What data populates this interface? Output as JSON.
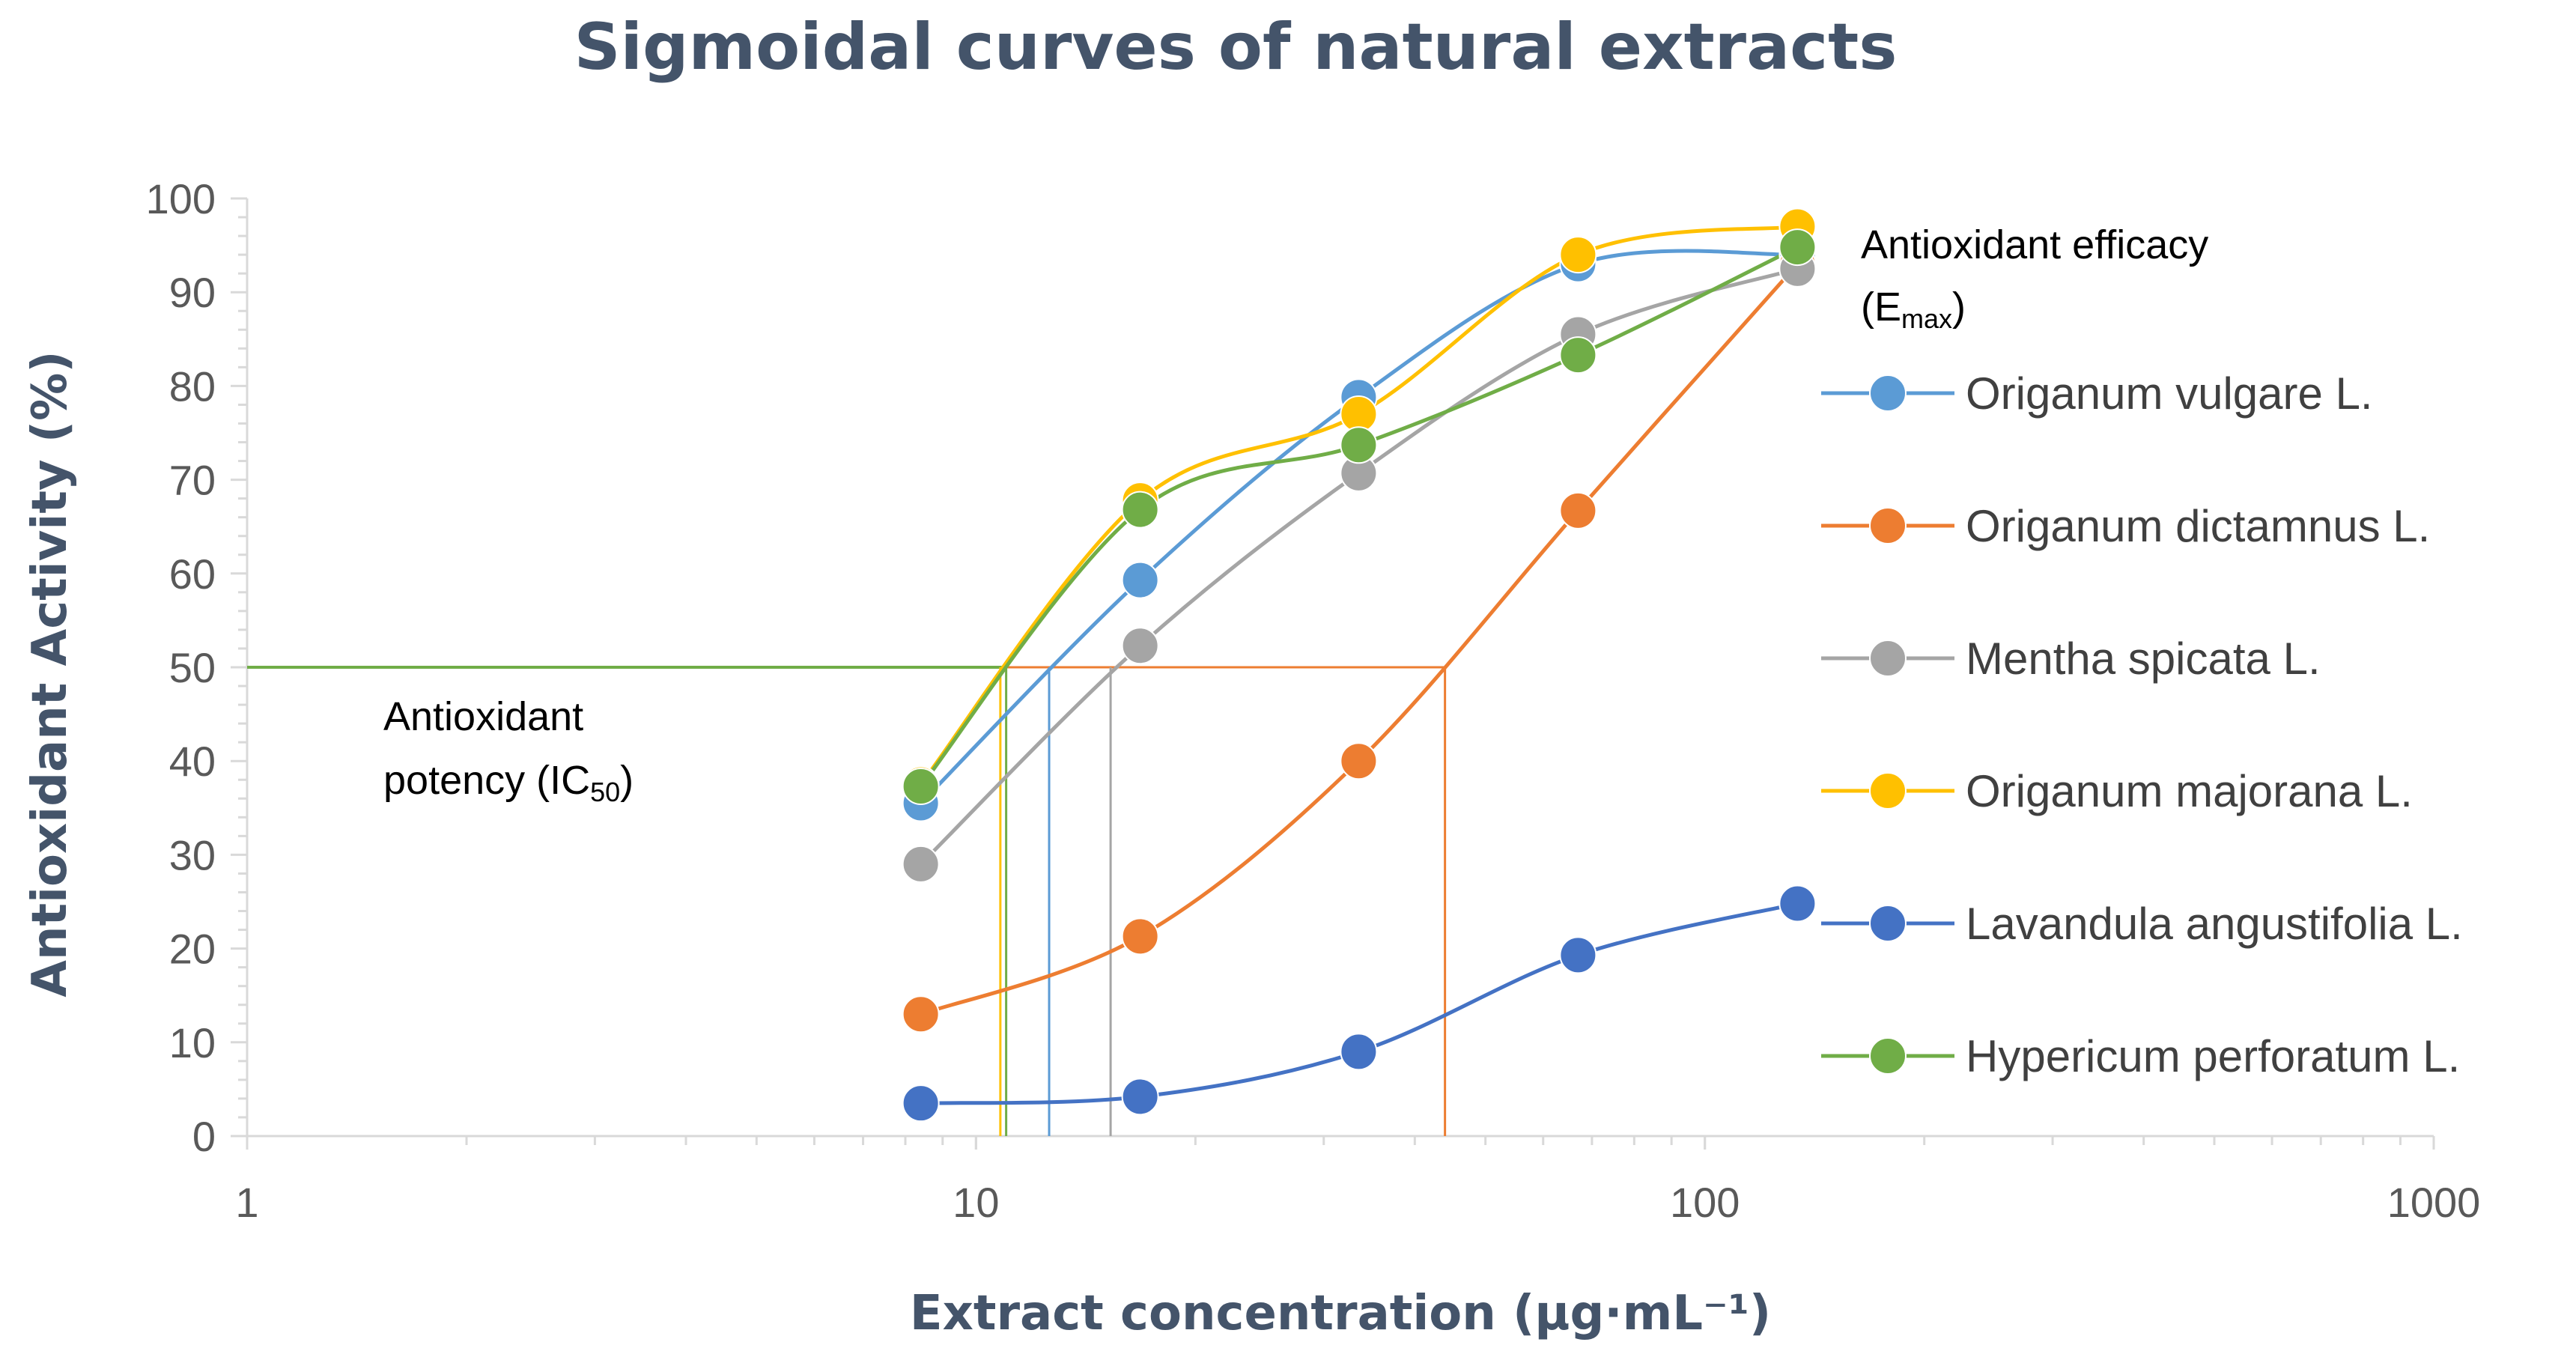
{
  "chart_data": {
    "type": "line",
    "title": "Sigmoidal curves of natural extracts",
    "xlabel": "Extract concentration (µg·mL⁻¹)",
    "ylabel": "Antioxidant Activity (%)",
    "x_scale": "log",
    "xlim": [
      1,
      1000
    ],
    "ylim": [
      0,
      100
    ],
    "x_ticks": [
      "1",
      "10",
      "100",
      "1000"
    ],
    "y_ticks": [
      "0",
      "10",
      "20",
      "30",
      "40",
      "50",
      "60",
      "70",
      "80",
      "90",
      "100"
    ],
    "x": [
      8.4,
      16.8,
      33.5,
      67,
      134
    ],
    "series": [
      {
        "name": "Origanum vulgare L.",
        "color": "#5b9bd5",
        "values": [
          35.5,
          59.3,
          78.8,
          93.0,
          94.0
        ],
        "ic50": 12.6
      },
      {
        "name": "Origanum dictamnus L.",
        "color": "#ed7d31",
        "values": [
          13.0,
          21.3,
          40.0,
          66.7,
          93.0
        ],
        "ic50": 44.0
      },
      {
        "name": "Mentha spicata L.",
        "color": "#a5a5a5",
        "values": [
          29.0,
          52.3,
          70.7,
          85.5,
          92.5
        ],
        "ic50": 15.3
      },
      {
        "name": "Origanum majorana L.",
        "color": "#ffc000",
        "values": [
          37.5,
          67.8,
          77.0,
          94.0,
          97.0
        ],
        "ic50": 10.8
      },
      {
        "name": "Lavandula angustifolia L.",
        "color": "#4472c4",
        "values": [
          3.5,
          4.2,
          9.0,
          19.3,
          24.8
        ],
        "ic50": null
      },
      {
        "name": "Hypericum perforatum L.",
        "color": "#70ad47",
        "values": [
          37.3,
          66.8,
          73.7,
          83.3,
          94.8
        ],
        "ic50": 11.0
      }
    ],
    "ic50_level": 50,
    "annotations": {
      "potency_line1": "Antioxidant",
      "potency_line2": "potency (IC",
      "potency_sub": "50",
      "potency_close": ")",
      "efficacy_line1": "Antioxidant efficacy",
      "efficacy_open": "(E",
      "efficacy_sub": "max",
      "efficacy_close": ")"
    }
  }
}
